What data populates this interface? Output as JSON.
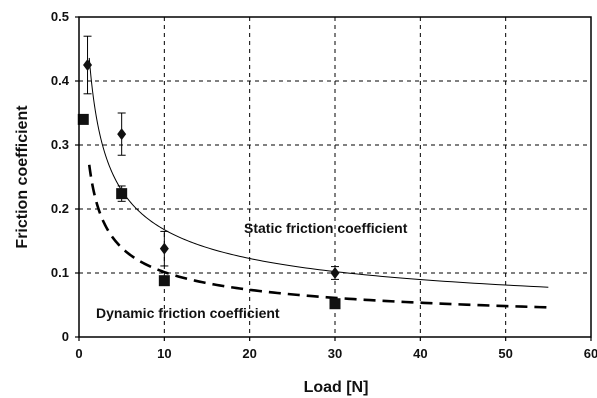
{
  "chart_data": {
    "type": "scatter",
    "xlabel": "Load [N]",
    "ylabel": "Friction coefficient",
    "xlim": [
      0,
      60
    ],
    "ylim": [
      0,
      0.5
    ],
    "x_ticks": [
      "0",
      "10",
      "20",
      "30",
      "40",
      "50",
      "60"
    ],
    "y_ticks": [
      "0",
      "0.1",
      "0.2",
      "0.3",
      "0.4",
      "0.5"
    ],
    "grid": "dashed",
    "series": [
      {
        "name": "Static friction coefficient",
        "marker": "diamond",
        "points": [
          {
            "x": 1,
            "y": 0.425,
            "err": 0.045
          },
          {
            "x": 5,
            "y": 0.317,
            "err": 0.033
          },
          {
            "x": 10,
            "y": 0.138,
            "err": 0.027
          },
          {
            "x": 30,
            "y": 0.1,
            "err": 0.01
          }
        ],
        "fit": {
          "style": "solid",
          "x_range": [
            1.2,
            55
          ]
        }
      },
      {
        "name": "Dynamic friction coefficient",
        "marker": "square",
        "points": [
          {
            "x": 0.5,
            "y": 0.34,
            "err": 0
          },
          {
            "x": 5,
            "y": 0.224,
            "err": 0.012
          },
          {
            "x": 10,
            "y": 0.088,
            "err": 0
          },
          {
            "x": 30,
            "y": 0.052,
            "err": 0
          }
        ],
        "fit": {
          "style": "dashed",
          "x_range": [
            1.2,
            55
          ]
        }
      }
    ],
    "annotations": [
      "Static friction coefficient",
      "Dynamic friction coefficient"
    ]
  }
}
